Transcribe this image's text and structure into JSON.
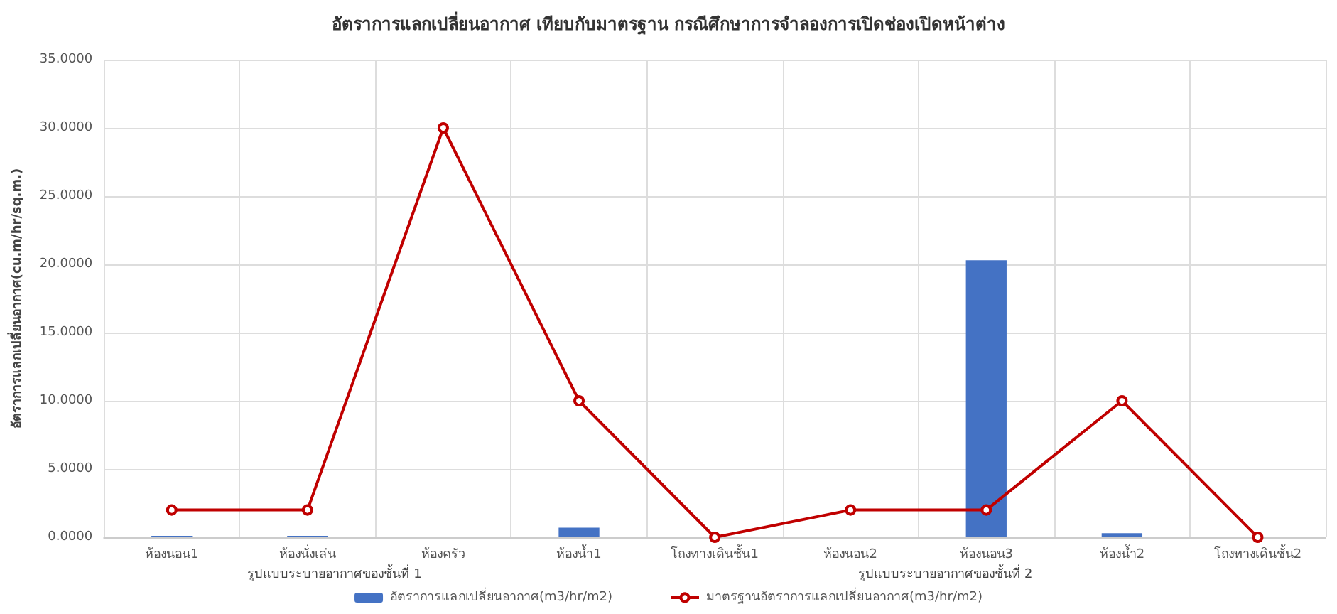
{
  "chart_data": {
    "type": "bar",
    "title": "อัตราการแลกเปลี่ยนอากาศ เทียบกับมาตรฐาน กรณีศึกษาการจำลองการเปิดช่องเปิดหน้าต่าง",
    "ylabel": "อัตราการแลกเปลี่ยนอากาศ(cu.m/hr/sq.m.)",
    "categories": [
      "ห้องนอน1",
      "ห้องนั่งเล่น",
      "ห้องครัว",
      "ห้องน้ำ1",
      "โถงทางเดินชั้น1",
      "ห้องนอน2",
      "ห้องนอน3",
      "ห้องน้ำ2",
      "โถงทางเดินชั้น2"
    ],
    "annotations": [
      "รูปแบบระบายอากาศของชั้นที่ 1",
      "รูปแบบระบายอากาศของชั้นที่ 2"
    ],
    "series": [
      {
        "name": "อัตราการแลกเปลี่ยนอากาศ(m3/hr/m2)",
        "color": "#4472c4",
        "values": [
          0.1,
          0.1,
          0,
          0.7,
          0,
          0,
          20.3,
          0.3,
          0
        ]
      },
      {
        "name": "มาตรฐานอัตราการแลกเปลี่ยนอากาศ(m3/hr/m2)",
        "type": "line",
        "color": "#c00000",
        "marker": "circle",
        "values": [
          2,
          2,
          30,
          10,
          0,
          2,
          2,
          10,
          0
        ]
      }
    ],
    "ylim": [
      0,
      35
    ],
    "yticks": [
      {
        "value": 0,
        "label": "0.0000"
      },
      {
        "value": 5,
        "label": "5.0000"
      },
      {
        "value": 10,
        "label": "10.0000"
      },
      {
        "value": 15,
        "label": "15.0000"
      },
      {
        "value": 20,
        "label": "20.0000"
      },
      {
        "value": 25,
        "label": "25.0000"
      },
      {
        "value": 30,
        "label": "30.0000"
      },
      {
        "value": 35,
        "label": "35.0000"
      }
    ],
    "grid": true,
    "legend": "bottom"
  }
}
